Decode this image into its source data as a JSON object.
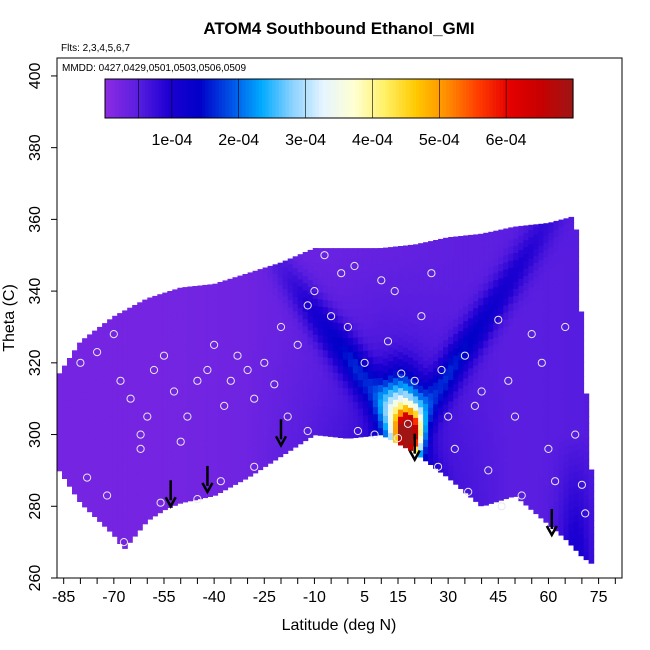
{
  "chart_data": {
    "type": "heatmap",
    "title": "ATOM4 Southbound Ethanol_GMI",
    "annotations": [
      "Flts: 2,3,4,5,6,7",
      "MMDD: 0427,0429,0501,0503,0506,0509"
    ],
    "xlabel": "Latitude (deg N)",
    "ylabel": "Theta (C)",
    "xlim": [
      -87,
      82
    ],
    "ylim": [
      260,
      405
    ],
    "x_ticks_minor": [
      -85,
      -80,
      -75,
      -70,
      -65,
      -60,
      -55,
      -50,
      -45,
      -40,
      -35,
      -30,
      -25,
      -20,
      -15,
      -10,
      -5,
      0,
      5,
      10,
      15,
      20,
      25,
      30,
      35,
      40,
      45,
      50,
      55,
      60,
      65,
      70,
      75,
      80
    ],
    "x_tick_labels": [
      "-85",
      "-70",
      "-55",
      "-40",
      "-25",
      "-10",
      "5",
      "15",
      "30",
      "45",
      "60",
      "75"
    ],
    "x_tick_label_values": [
      -85,
      -70,
      -55,
      -40,
      -25,
      -10,
      5,
      15,
      30,
      45,
      60,
      75
    ],
    "y_ticks": [
      260,
      280,
      300,
      320,
      340,
      360,
      380,
      400
    ],
    "y_tick_labels": [
      "260",
      "280",
      "300",
      "320",
      "340",
      "360",
      "380",
      "400"
    ],
    "colorbar": {
      "range": [
        0,
        0.0007
      ],
      "tick_values": [
        0.0001,
        0.0002,
        0.0003,
        0.0004,
        0.0005,
        0.0006
      ],
      "tick_labels": [
        "1e-04",
        "2e-04",
        "3e-04",
        "4e-04",
        "5e-04",
        "6e-04"
      ],
      "colors": [
        "#8a2be2",
        "#5a1ee0",
        "#1e00d2",
        "#0000c8",
        "#0050e6",
        "#00aaff",
        "#8cd2ff",
        "#e6f5ff",
        "#ffffd2",
        "#fff064",
        "#ffc800",
        "#ff8c00",
        "#ff3c00",
        "#e60000",
        "#c80000",
        "#a01414"
      ]
    },
    "domain_top": [
      [
        -87,
        316
      ],
      [
        -80,
        326
      ],
      [
        -70,
        333
      ],
      [
        -60,
        338
      ],
      [
        -50,
        341
      ],
      [
        -40,
        342
      ],
      [
        -30,
        345
      ],
      [
        -20,
        348
      ],
      [
        -10,
        352
      ],
      [
        0,
        352
      ],
      [
        10,
        352
      ],
      [
        20,
        353
      ],
      [
        30,
        355
      ],
      [
        40,
        356
      ],
      [
        50,
        358
      ],
      [
        60,
        359
      ],
      [
        68,
        361
      ],
      [
        72,
        300
      ],
      [
        73,
        287
      ]
    ],
    "domain_bottom": [
      [
        -87,
        291
      ],
      [
        -80,
        281
      ],
      [
        -70,
        272
      ],
      [
        -67,
        268
      ],
      [
        -60,
        276
      ],
      [
        -55,
        279
      ],
      [
        -50,
        281
      ],
      [
        -40,
        283
      ],
      [
        -30,
        288
      ],
      [
        -20,
        294
      ],
      [
        -10,
        300
      ],
      [
        0,
        299
      ],
      [
        10,
        300
      ],
      [
        20,
        295
      ],
      [
        30,
        288
      ],
      [
        40,
        280
      ],
      [
        50,
        283
      ],
      [
        60,
        275
      ],
      [
        65,
        271
      ],
      [
        70,
        266
      ],
      [
        73,
        264
      ]
    ],
    "arrows": [
      [
        -53,
        280
      ],
      [
        -42,
        284
      ],
      [
        -20,
        297
      ],
      [
        20,
        293
      ],
      [
        61,
        272
      ]
    ],
    "sample_points": [
      [
        -80,
        320
      ],
      [
        -75,
        323
      ],
      [
        -70,
        328
      ],
      [
        -68,
        315
      ],
      [
        -65,
        310
      ],
      [
        -62,
        300
      ],
      [
        -60,
        305
      ],
      [
        -58,
        318
      ],
      [
        -55,
        322
      ],
      [
        -52,
        312
      ],
      [
        -50,
        298
      ],
      [
        -48,
        305
      ],
      [
        -45,
        315
      ],
      [
        -42,
        318
      ],
      [
        -40,
        325
      ],
      [
        -37,
        308
      ],
      [
        -35,
        315
      ],
      [
        -33,
        322
      ],
      [
        -30,
        318
      ],
      [
        -28,
        310
      ],
      [
        -25,
        320
      ],
      [
        -22,
        314
      ],
      [
        -20,
        330
      ],
      [
        -18,
        305
      ],
      [
        -15,
        325
      ],
      [
        -12,
        336
      ],
      [
        -10,
        340
      ],
      [
        -7,
        350
      ],
      [
        -5,
        333
      ],
      [
        -2,
        345
      ],
      [
        0,
        330
      ],
      [
        2,
        347
      ],
      [
        5,
        320
      ],
      [
        8,
        300
      ],
      [
        10,
        343
      ],
      [
        12,
        326
      ],
      [
        14,
        340
      ],
      [
        16,
        317
      ],
      [
        18,
        303
      ],
      [
        20,
        315
      ],
      [
        22,
        333
      ],
      [
        25,
        345
      ],
      [
        28,
        318
      ],
      [
        30,
        305
      ],
      [
        32,
        296
      ],
      [
        35,
        322
      ],
      [
        38,
        308
      ],
      [
        40,
        312
      ],
      [
        42,
        290
      ],
      [
        45,
        332
      ],
      [
        48,
        315
      ],
      [
        50,
        305
      ],
      [
        52,
        283
      ],
      [
        55,
        328
      ],
      [
        58,
        320
      ],
      [
        60,
        296
      ],
      [
        62,
        287
      ],
      [
        65,
        330
      ],
      [
        68,
        300
      ],
      [
        70,
        286
      ],
      [
        -78,
        288
      ],
      [
        -72,
        283
      ],
      [
        -67,
        270
      ],
      [
        -62,
        296
      ],
      [
        -56,
        281
      ],
      [
        -45,
        282
      ],
      [
        -38,
        287
      ],
      [
        -28,
        291
      ],
      [
        -12,
        301
      ],
      [
        3,
        301
      ],
      [
        15,
        299
      ],
      [
        27,
        291
      ],
      [
        36,
        284
      ],
      [
        46,
        280
      ],
      [
        71,
        278
      ]
    ]
  }
}
